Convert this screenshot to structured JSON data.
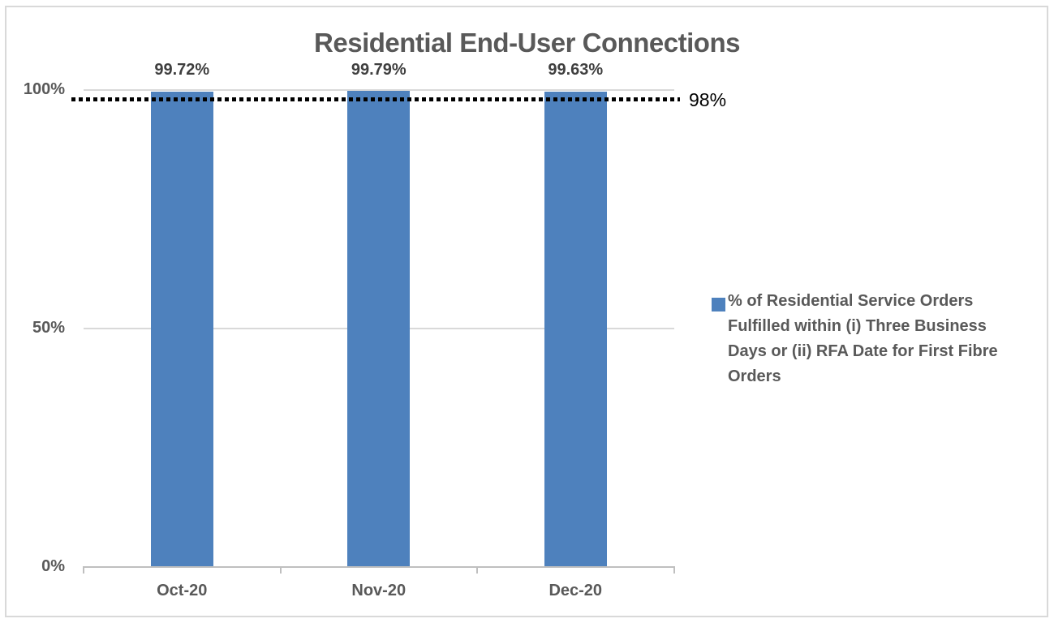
{
  "chart_data": {
    "type": "bar",
    "title": "Residential End-User Connections",
    "categories": [
      "Oct-20",
      "Nov-20",
      "Dec-20"
    ],
    "series": [
      {
        "name": "% of Residential Service Orders Fulfilled within (i) Three Business Days or (ii) RFA Date for First Fibre Orders",
        "values": [
          99.72,
          99.79,
          99.63
        ],
        "color": "#4e81bd"
      }
    ],
    "data_labels": [
      "99.72%",
      "99.79%",
      "99.63%"
    ],
    "y_axis": {
      "min": 0,
      "max": 100,
      "ticks": [
        {
          "value": 0,
          "label": "0%"
        },
        {
          "value": 50,
          "label": "50%"
        },
        {
          "value": 100,
          "label": "100%"
        }
      ]
    },
    "target_line": {
      "value": 98,
      "label": "98%",
      "style": "dotted",
      "color": "#000000"
    },
    "grid": true,
    "legend_position": "right",
    "legend": {
      "swatch_color": "#4e81bd",
      "lines": [
        "% of Residential Service Orders",
        "Fulfilled within (i) Three Business",
        "Days or (ii) RFA Date for First Fibre",
        "Orders"
      ]
    },
    "colors": {
      "title": "#595959",
      "axis_label": "#595959",
      "data_label": "#3f3f3f",
      "gridline": "#d9d9d9",
      "axis_line": "#bfbfbf",
      "border": "#d9d9d9",
      "background": "#ffffff"
    }
  }
}
